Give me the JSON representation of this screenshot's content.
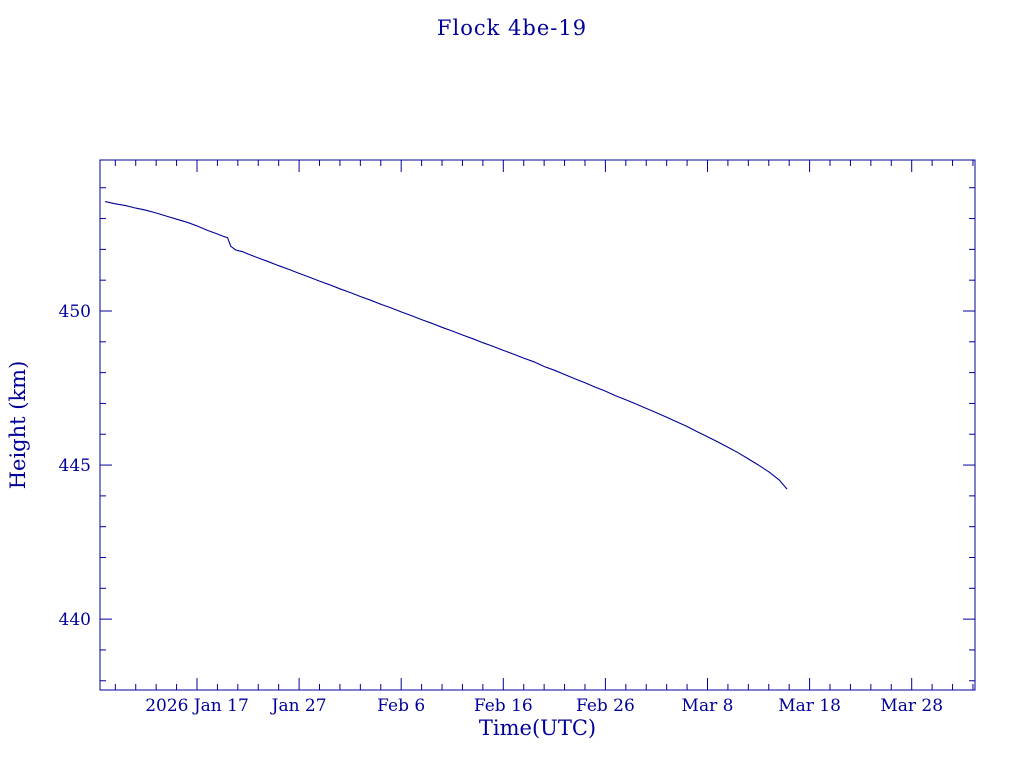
{
  "chart_data": {
    "type": "line",
    "title": "Flock 4be-19",
    "xlabel": "Time(UTC)",
    "ylabel": "Height (km)",
    "line_color": "#000099",
    "background": "#ffffff",
    "grid": false,
    "legend": "none",
    "x_axis": {
      "unit": "day of year 2026",
      "range": [
        7.5,
        93.2
      ],
      "minor_tick_step": 2,
      "major_ticks": [
        {
          "value": 17,
          "label": "2026 Jan 17"
        },
        {
          "value": 27,
          "label": "Jan 27"
        },
        {
          "value": 37,
          "label": "Feb 6"
        },
        {
          "value": 47,
          "label": "Feb 16"
        },
        {
          "value": 57,
          "label": "Feb 26"
        },
        {
          "value": 67,
          "label": "Mar 8"
        },
        {
          "value": 77,
          "label": "Mar 18"
        },
        {
          "value": 87,
          "label": "Mar 28"
        }
      ]
    },
    "y_axis": {
      "unit": "km",
      "range": [
        437.7,
        454.9
      ],
      "minor_tick_step": 1,
      "major_ticks": [
        {
          "value": 440,
          "label": "440"
        },
        {
          "value": 445,
          "label": "445"
        },
        {
          "value": 450,
          "label": "450"
        }
      ]
    },
    "series": [
      {
        "name": "Flock 4be-19 height",
        "points": [
          [
            8.0,
            453.55
          ],
          [
            9,
            453.48
          ],
          [
            10,
            453.42
          ],
          [
            11,
            453.34
          ],
          [
            12,
            453.27
          ],
          [
            13,
            453.18
          ],
          [
            14,
            453.08
          ],
          [
            15,
            452.98
          ],
          [
            16,
            452.88
          ],
          [
            17,
            452.76
          ],
          [
            18,
            452.62
          ],
          [
            19,
            452.5
          ],
          [
            19.6,
            452.42
          ],
          [
            20,
            452.38
          ],
          [
            20.3,
            452.1
          ],
          [
            20.8,
            451.98
          ],
          [
            21.5,
            451.92
          ],
          [
            22,
            451.85
          ],
          [
            23,
            451.72
          ],
          [
            24,
            451.6
          ],
          [
            25,
            451.47
          ],
          [
            26,
            451.35
          ],
          [
            27,
            451.22
          ],
          [
            28,
            451.1
          ],
          [
            29,
            450.97
          ],
          [
            30,
            450.85
          ],
          [
            31,
            450.72
          ],
          [
            32,
            450.6
          ],
          [
            33,
            450.47
          ],
          [
            34,
            450.35
          ],
          [
            35,
            450.22
          ],
          [
            36,
            450.1
          ],
          [
            37,
            449.97
          ],
          [
            38,
            449.85
          ],
          [
            39,
            449.72
          ],
          [
            40,
            449.6
          ],
          [
            41,
            449.47
          ],
          [
            42,
            449.35
          ],
          [
            43,
            449.22
          ],
          [
            44,
            449.1
          ],
          [
            45,
            448.97
          ],
          [
            46,
            448.85
          ],
          [
            47,
            448.72
          ],
          [
            48,
            448.6
          ],
          [
            49,
            448.47
          ],
          [
            50,
            448.35
          ],
          [
            51,
            448.2
          ],
          [
            52,
            448.08
          ],
          [
            53,
            447.94
          ],
          [
            54,
            447.8
          ],
          [
            55,
            447.67
          ],
          [
            56,
            447.53
          ],
          [
            57,
            447.4
          ],
          [
            58,
            447.25
          ],
          [
            59,
            447.12
          ],
          [
            60,
            446.98
          ],
          [
            61,
            446.84
          ],
          [
            62,
            446.7
          ],
          [
            63,
            446.55
          ],
          [
            64,
            446.4
          ],
          [
            65,
            446.25
          ],
          [
            66,
            446.08
          ],
          [
            67,
            445.92
          ],
          [
            68,
            445.75
          ],
          [
            69,
            445.58
          ],
          [
            70,
            445.4
          ],
          [
            71,
            445.2
          ],
          [
            72,
            445.0
          ],
          [
            73,
            444.78
          ],
          [
            74,
            444.52
          ],
          [
            74.8,
            444.22
          ]
        ]
      }
    ]
  }
}
